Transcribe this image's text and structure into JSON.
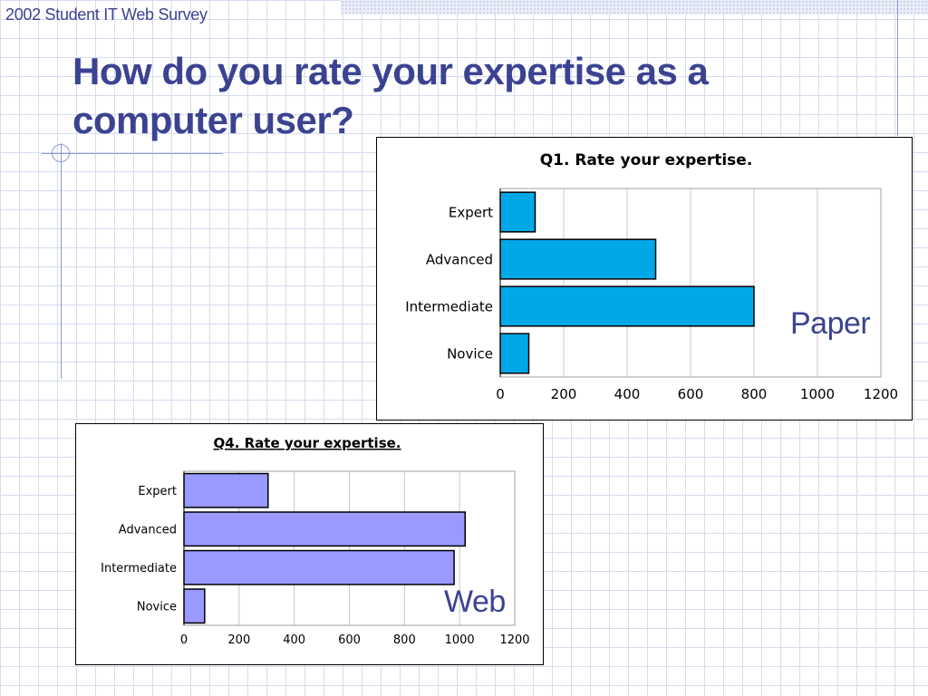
{
  "header": {
    "subtitle": "2002 Student IT Web Survey",
    "title": "How do you rate your expertise as a computer user?"
  },
  "colors": {
    "title": "#3b4391",
    "paper_bar": "#00a8e8",
    "web_bar": "#9999ff"
  },
  "chart_data": [
    {
      "type": "bar",
      "orientation": "horizontal",
      "title": "Q1. Rate your expertise.",
      "caption": "Paper",
      "categories": [
        "Expert",
        "Advanced",
        "Intermediate",
        "Novice"
      ],
      "values": [
        110,
        490,
        800,
        90
      ],
      "xlim": [
        0,
        1200
      ],
      "xticks": [
        "0",
        "200",
        "400",
        "600",
        "800",
        "1000",
        "1200"
      ],
      "grid": true,
      "bar_color": "#00a8e8"
    },
    {
      "type": "bar",
      "orientation": "horizontal",
      "title": "Q4. Rate your expertise.",
      "caption": "Web",
      "categories": [
        "Expert",
        "Advanced",
        "Intermediate",
        "Novice"
      ],
      "values": [
        305,
        1020,
        980,
        75
      ],
      "xlim": [
        0,
        1200
      ],
      "xticks": [
        "0",
        "200",
        "400",
        "600",
        "800",
        "1000",
        "1200"
      ],
      "grid": true,
      "bar_color": "#9999ff"
    }
  ]
}
